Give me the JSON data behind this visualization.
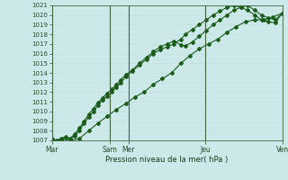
{
  "xlabel": "Pression niveau de la mer( hPa )",
  "bg_color": "#cce8e8",
  "grid_color_major": "#aacccc",
  "grid_color_minor": "#c0dede",
  "line_color": "#1a5c1a",
  "ylim": [
    1007,
    1021
  ],
  "yticks": [
    1007,
    1008,
    1009,
    1010,
    1011,
    1012,
    1013,
    1014,
    1015,
    1016,
    1017,
    1018,
    1019,
    1020,
    1021
  ],
  "day_labels": [
    "Mar",
    "Sam\nMer",
    "Jeu",
    "Ven"
  ],
  "day_positions": [
    0.0,
    0.333,
    0.667,
    1.0
  ],
  "vline_positions": [
    0.0,
    0.25,
    0.333,
    0.667,
    1.0
  ],
  "num_points": 50,
  "line1_x": [
    0.0,
    0.02,
    0.04,
    0.06,
    0.08,
    0.1,
    0.12,
    0.14,
    0.16,
    0.18,
    0.2,
    0.22,
    0.24,
    0.26,
    0.28,
    0.3,
    0.32,
    0.35,
    0.38,
    0.41,
    0.44,
    0.47,
    0.5,
    0.53,
    0.56,
    0.58,
    0.61,
    0.64,
    0.67,
    0.7,
    0.73,
    0.76,
    0.79,
    0.82,
    0.85,
    0.88,
    0.91,
    0.94,
    0.97,
    1.0
  ],
  "line1_y": [
    1007.0,
    1006.9,
    1007.1,
    1007.3,
    1007.1,
    1007.5,
    1008.0,
    1008.8,
    1009.4,
    1010.0,
    1010.6,
    1011.2,
    1011.6,
    1012.0,
    1012.5,
    1013.0,
    1013.6,
    1014.2,
    1014.8,
    1015.4,
    1016.0,
    1016.4,
    1016.7,
    1017.0,
    1017.5,
    1018.0,
    1018.5,
    1019.0,
    1019.5,
    1020.0,
    1020.4,
    1020.8,
    1021.0,
    1020.8,
    1020.5,
    1020.0,
    1019.5,
    1019.3,
    1019.2,
    1020.2
  ],
  "line2_x": [
    0.0,
    0.02,
    0.04,
    0.06,
    0.08,
    0.1,
    0.12,
    0.14,
    0.16,
    0.18,
    0.2,
    0.22,
    0.24,
    0.26,
    0.28,
    0.3,
    0.32,
    0.35,
    0.38,
    0.41,
    0.44,
    0.47,
    0.5,
    0.53,
    0.56,
    0.58,
    0.61,
    0.64,
    0.67,
    0.7,
    0.73,
    0.76,
    0.79,
    0.82,
    0.85,
    0.88,
    0.91,
    0.94,
    0.97,
    1.0
  ],
  "line2_y": [
    1007.2,
    1007.0,
    1007.2,
    1007.4,
    1007.2,
    1007.7,
    1008.3,
    1009.0,
    1009.7,
    1010.3,
    1010.9,
    1011.4,
    1011.9,
    1012.3,
    1012.8,
    1013.3,
    1013.8,
    1014.3,
    1015.0,
    1015.6,
    1016.2,
    1016.7,
    1017.0,
    1017.3,
    1016.9,
    1016.8,
    1017.2,
    1017.8,
    1018.4,
    1019.0,
    1019.5,
    1020.0,
    1020.5,
    1020.8,
    1021.0,
    1020.5,
    1020.0,
    1019.7,
    1019.5,
    1020.2
  ],
  "line3_x": [
    0.0,
    0.04,
    0.08,
    0.12,
    0.16,
    0.2,
    0.24,
    0.28,
    0.32,
    0.36,
    0.4,
    0.44,
    0.48,
    0.52,
    0.56,
    0.6,
    0.64,
    0.68,
    0.72,
    0.76,
    0.8,
    0.84,
    0.88,
    0.92,
    0.96,
    1.0
  ],
  "line3_y": [
    1007.0,
    1007.0,
    1007.0,
    1007.2,
    1008.0,
    1008.8,
    1009.5,
    1010.2,
    1010.8,
    1011.5,
    1012.0,
    1012.8,
    1013.4,
    1014.0,
    1015.0,
    1015.8,
    1016.5,
    1017.0,
    1017.5,
    1018.2,
    1018.8,
    1019.3,
    1019.5,
    1019.5,
    1019.8,
    1020.2
  ]
}
